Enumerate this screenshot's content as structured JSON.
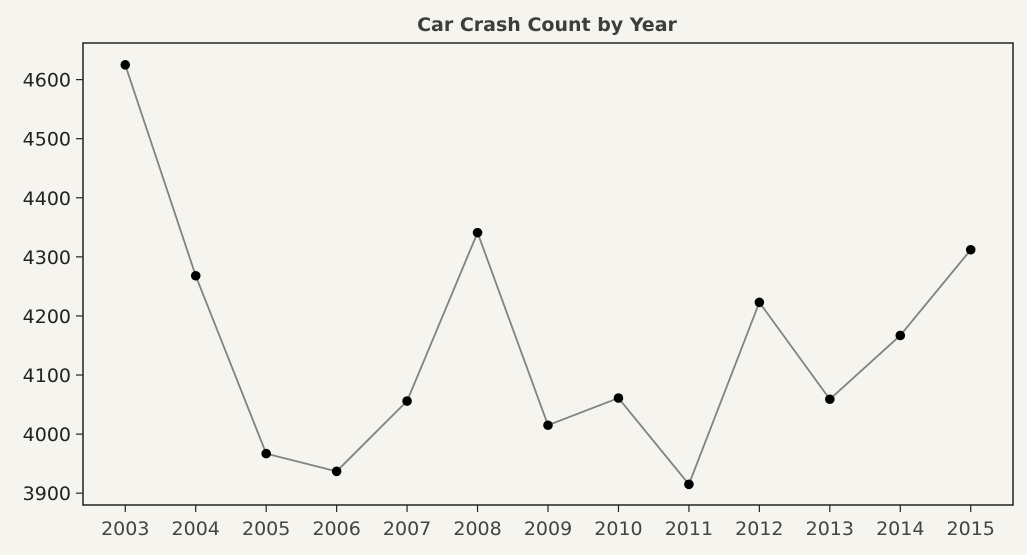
{
  "chart_data": {
    "type": "line",
    "title": "Car Crash Count by Year",
    "xlabel": "",
    "ylabel": "",
    "x": [
      2003,
      2004,
      2005,
      2006,
      2007,
      2008,
      2009,
      2010,
      2011,
      2012,
      2013,
      2014,
      2015
    ],
    "series": [
      {
        "values": [
          4625,
          4268,
          3967,
          3937,
          4056,
          4341,
          4015,
          4061,
          3915,
          4223,
          4059,
          4167,
          4312
        ]
      }
    ],
    "x_ticks": [
      "2003",
      "2004",
      "2005",
      "2006",
      "2007",
      "2008",
      "2009",
      "2010",
      "2011",
      "2012",
      "2013",
      "2014",
      "2015"
    ],
    "y_ticks": [
      "3900",
      "4000",
      "4100",
      "4200",
      "4300",
      "4400",
      "4500",
      "4600"
    ],
    "xlim": [
      2002.4,
      2015.6
    ],
    "ylim": [
      3880,
      4662
    ],
    "grid": false,
    "legend": "none",
    "colors": {
      "background": "#f5f4ef",
      "line": "#828282",
      "marker": "#000000",
      "axes": "#222222",
      "title": "#3d3d3d"
    }
  }
}
